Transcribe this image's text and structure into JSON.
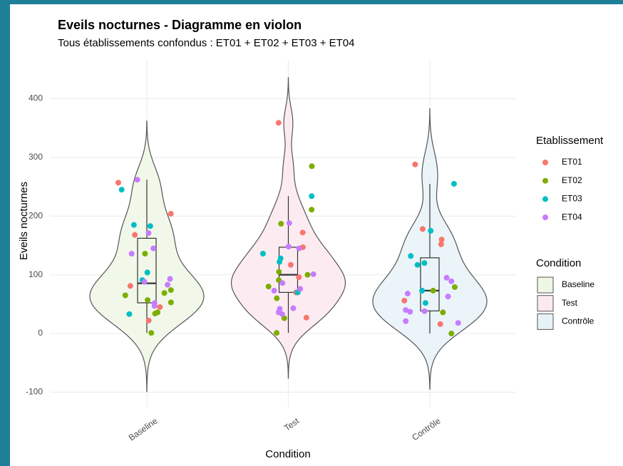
{
  "chart_data": {
    "type": "violin",
    "title": "Eveils nocturnes - Diagramme en violon",
    "subtitle": "Tous établissements confondus : ET01 + ET02 + ET03 + ET04",
    "x_label": "Condition",
    "y_label": "Eveils nocturnes",
    "categories": [
      "Baseline",
      "Test",
      "Contrôle"
    ],
    "category_colors": [
      "#eef7e6",
      "#fbe9ee",
      "#e6f2f8"
    ],
    "legend_point_title": "Etablissement",
    "legend_fill_title": "Condition",
    "series": [
      {
        "name": "ET01",
        "color": "#f8766d",
        "values": [
          [
            257,
            204,
            168,
            81,
            45,
            22
          ],
          [
            359,
            172,
            147,
            117,
            96,
            70,
            27
          ],
          [
            288,
            178,
            160,
            152,
            56,
            16
          ]
        ]
      },
      {
        "name": "ET02",
        "color": "#7cae00",
        "values": [
          [
            136,
            74,
            69,
            65,
            57,
            53,
            36,
            34,
            1
          ],
          [
            285,
            211,
            187,
            105,
            100,
            91,
            80,
            60,
            26,
            1
          ],
          [
            79,
            73,
            36,
            0
          ]
        ]
      },
      {
        "name": "ET03",
        "color": "#00bfc4",
        "values": [
          [
            245,
            185,
            183,
            104,
            91,
            33
          ],
          [
            234,
            136,
            128,
            122,
            70
          ],
          [
            255,
            175,
            132,
            120,
            117,
            73,
            52
          ]
        ]
      },
      {
        "name": "ET04",
        "color": "#c77cff",
        "values": [
          [
            262,
            171,
            145,
            136,
            93,
            88,
            83,
            52,
            47
          ],
          [
            188,
            148,
            145,
            101,
            86,
            76,
            73,
            43,
            42,
            36,
            33
          ],
          [
            95,
            89,
            68,
            63,
            40,
            38,
            37,
            21,
            18
          ]
        ]
      }
    ],
    "ylim": [
      -125,
      465
    ],
    "yticks": [
      -100,
      0,
      100,
      200,
      300,
      400
    ],
    "grid": true,
    "legend": "right"
  }
}
